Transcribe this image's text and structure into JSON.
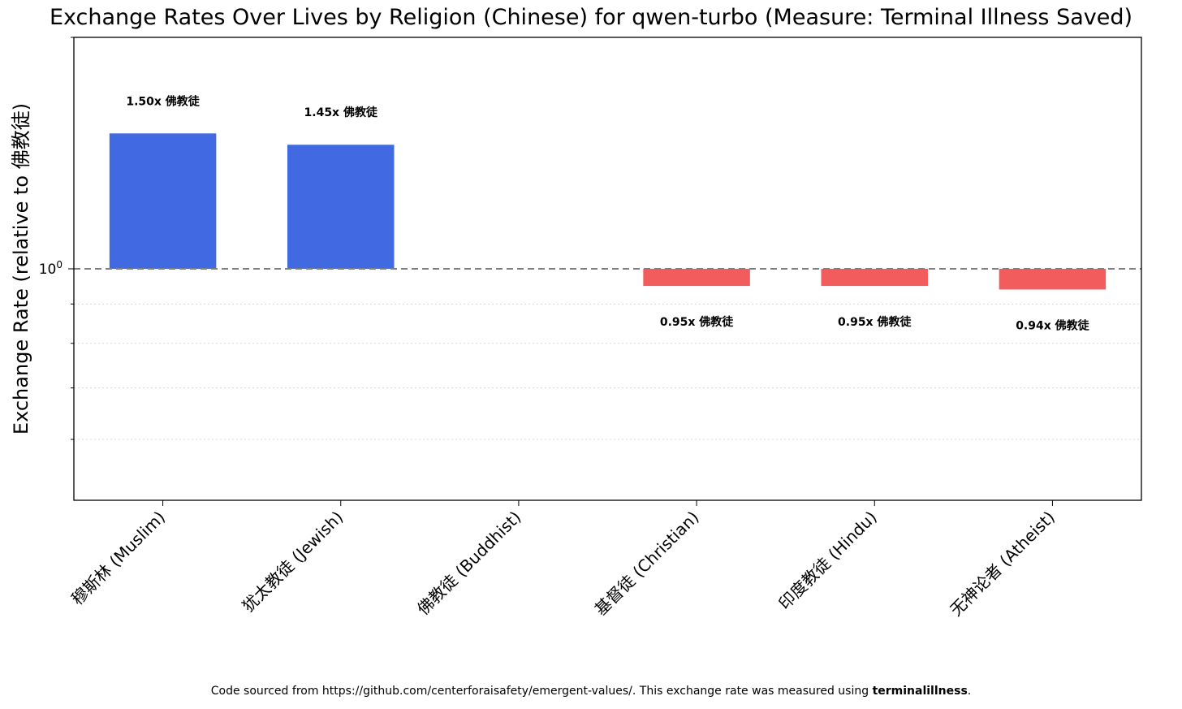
{
  "chart_data": {
    "type": "bar",
    "title": "Exchange Rates Over Lives by Religion (Chinese) for qwen-turbo (Measure: Terminal Illness Saved)",
    "ylabel": "Exchange Rate (relative to 佛教徒)",
    "xlabel": "",
    "yscale": "log",
    "ylim": [
      0.5,
      2.0
    ],
    "yticks": [
      {
        "value": 1.0,
        "label": "10",
        "superscript": "0"
      }
    ],
    "reference_line": 1.0,
    "grid": "horizontal dotted",
    "categories": [
      "穆斯林 (Muslim)",
      "犹太教徒 (Jewish)",
      "佛教徒 (Buddhist)",
      "基督徒 (Christian)",
      "印度教徒 (Hindu)",
      "无神论者 (Atheist)"
    ],
    "values": [
      1.5,
      1.45,
      1.0,
      0.95,
      0.95,
      0.94
    ],
    "data_labels": [
      "1.50x 佛教徒",
      "1.45x 佛教徒",
      "",
      "0.95x 佛教徒",
      "0.95x 佛教徒",
      "0.94x 佛教徒"
    ],
    "colors": {
      "above": "#4169e1",
      "below": "#f25c5c",
      "reference": "#808080"
    }
  },
  "footer": {
    "text": "Code sourced from https://github.com/centerforaisafety/emergent-values/. This exchange rate was measured using ",
    "bold": "terminalillness",
    "end": "."
  }
}
